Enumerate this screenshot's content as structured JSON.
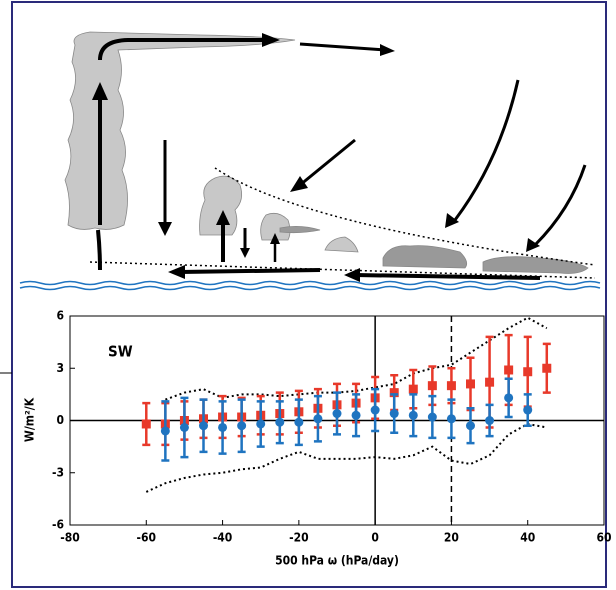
{
  "chart_data": {
    "type": "errorbar",
    "annotation": "SW",
    "ylabel": "W/m²/K",
    "xlabel": "500 hPa ω  (hPa/day)",
    "xlim": [
      -80,
      60
    ],
    "xticks": [
      -80,
      -60,
      -40,
      -20,
      0,
      20,
      40,
      60
    ],
    "ylim": [
      -6,
      6
    ],
    "yticks": [
      -6,
      -3,
      0,
      3,
      6
    ],
    "vline": 20,
    "series": [
      {
        "color": "#e8392a",
        "marker": "square",
        "x": [
          -60,
          -55,
          -50,
          -45,
          -40,
          -35,
          -30,
          -25,
          -20,
          -15,
          -10,
          -5,
          0,
          5,
          10,
          15,
          20,
          25,
          30,
          35,
          40,
          45
        ],
        "values": [
          -0.2,
          -0.2,
          0,
          0.1,
          0.2,
          0.2,
          0.3,
          0.4,
          0.5,
          0.7,
          0.9,
          1.0,
          1.3,
          1.6,
          1.8,
          2.0,
          2.0,
          2.1,
          2.2,
          2.9,
          2.8,
          3.0
        ],
        "errors": [
          1.2,
          1.2,
          1.1,
          1.1,
          1.2,
          1.1,
          1.1,
          1.2,
          1.2,
          1.1,
          1.2,
          1.1,
          1.2,
          1.0,
          1.1,
          1.1,
          1.0,
          1.5,
          2.6,
          2.0,
          2.0,
          1.4
        ]
      },
      {
        "color": "#1f74c0",
        "marker": "circle",
        "x": [
          -55,
          -50,
          -45,
          -40,
          -35,
          -30,
          -25,
          -20,
          -15,
          -10,
          -5,
          0,
          5,
          10,
          15,
          20,
          25,
          30,
          35,
          40
        ],
        "values": [
          -0.6,
          -0.4,
          -0.3,
          -0.4,
          -0.3,
          -0.2,
          -0.1,
          -0.1,
          0.1,
          0.4,
          0.3,
          0.6,
          0.4,
          0.3,
          0.2,
          0.1,
          -0.3,
          0.0,
          1.3,
          0.6
        ],
        "errors": [
          1.7,
          1.7,
          1.5,
          1.5,
          1.5,
          1.3,
          1.2,
          1.3,
          1.3,
          1.2,
          1.2,
          1.2,
          1.1,
          1.2,
          1.2,
          1.1,
          1.0,
          0.9,
          1.1,
          0.9
        ]
      }
    ],
    "bounds": {
      "x_upper": [
        -55,
        -50,
        -45,
        -40,
        -35,
        -30,
        -25,
        -20,
        -15,
        -10,
        -5,
        0,
        5,
        10,
        15,
        20,
        25,
        30,
        35,
        40,
        45
      ],
      "upper": [
        1.2,
        1.6,
        1.8,
        1.3,
        1.5,
        1.5,
        1.4,
        1.5,
        1.6,
        1.6,
        1.7,
        1.9,
        2.1,
        2.7,
        3.0,
        3.2,
        3.9,
        4.6,
        5.3,
        5.9,
        5.3
      ],
      "x_lower": [
        -60,
        -55,
        -50,
        -45,
        -40,
        -35,
        -30,
        -25,
        -20,
        -15,
        -10,
        -5,
        0,
        5,
        10,
        15,
        20,
        25,
        30,
        35,
        40,
        45
      ],
      "lower": [
        -4.1,
        -3.6,
        -3.3,
        -3.1,
        -3.0,
        -2.8,
        -2.7,
        -2.2,
        -1.8,
        -2.2,
        -2.2,
        -2.2,
        -2.1,
        -2.2,
        -2.0,
        -1.5,
        -2.3,
        -2.5,
        -2.0,
        -0.8,
        -0.2,
        -0.4
      ]
    }
  }
}
